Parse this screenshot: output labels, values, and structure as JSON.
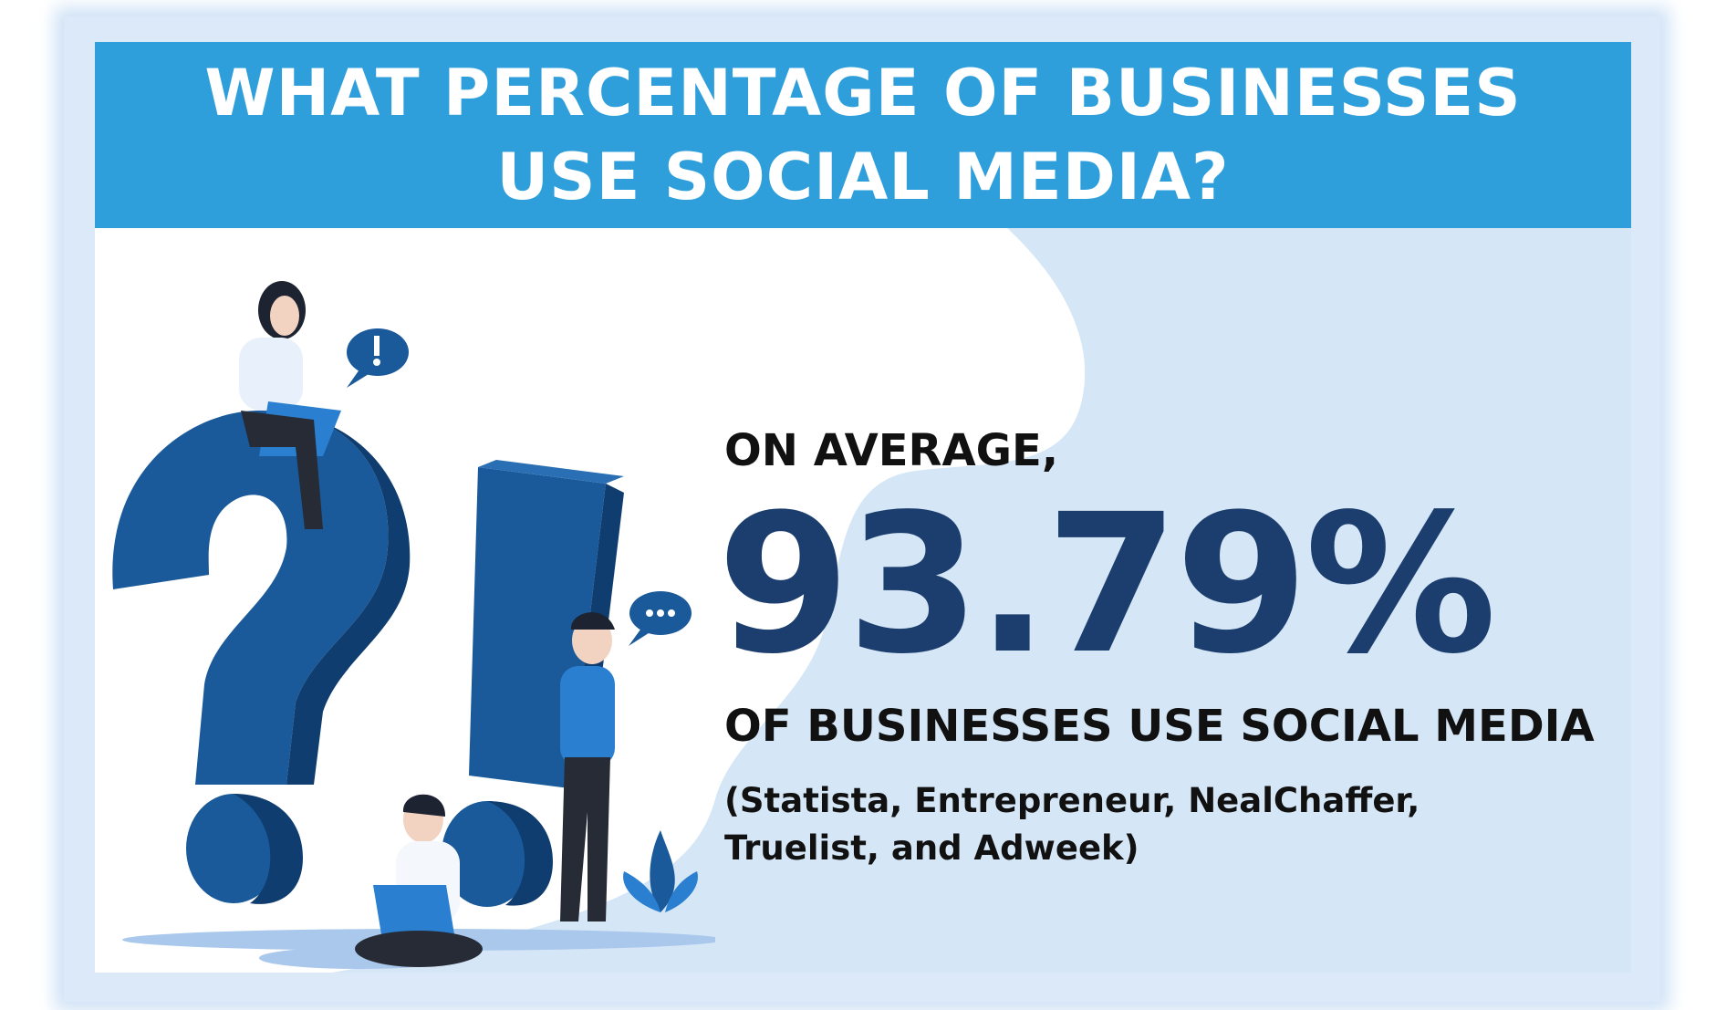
{
  "header": {
    "title": "WHAT PERCENTAGE OF BUSINESSES USE SOCIAL MEDIA?"
  },
  "stat": {
    "lead": "ON AVERAGE,",
    "value": "93.79%",
    "description": "OF BUSINESSES USE SOCIAL MEDIA",
    "sources": "(Statista, Entrepreneur, NealChaffer, Truelist, and Adweek)"
  },
  "colors": {
    "banner": "#2f9fdc",
    "stat_value": "#1c3e6e",
    "symbol_blue": "#1a5a9a",
    "background_blob": "#d5e6f6"
  },
  "icons": [
    "question-mark-illustration",
    "exclamation-mark-illustration",
    "speech-bubble-exclamation-icon",
    "speech-bubble-dots-icon",
    "woman-with-laptop",
    "man-with-laptop",
    "man-with-phone",
    "plant-icon"
  ]
}
